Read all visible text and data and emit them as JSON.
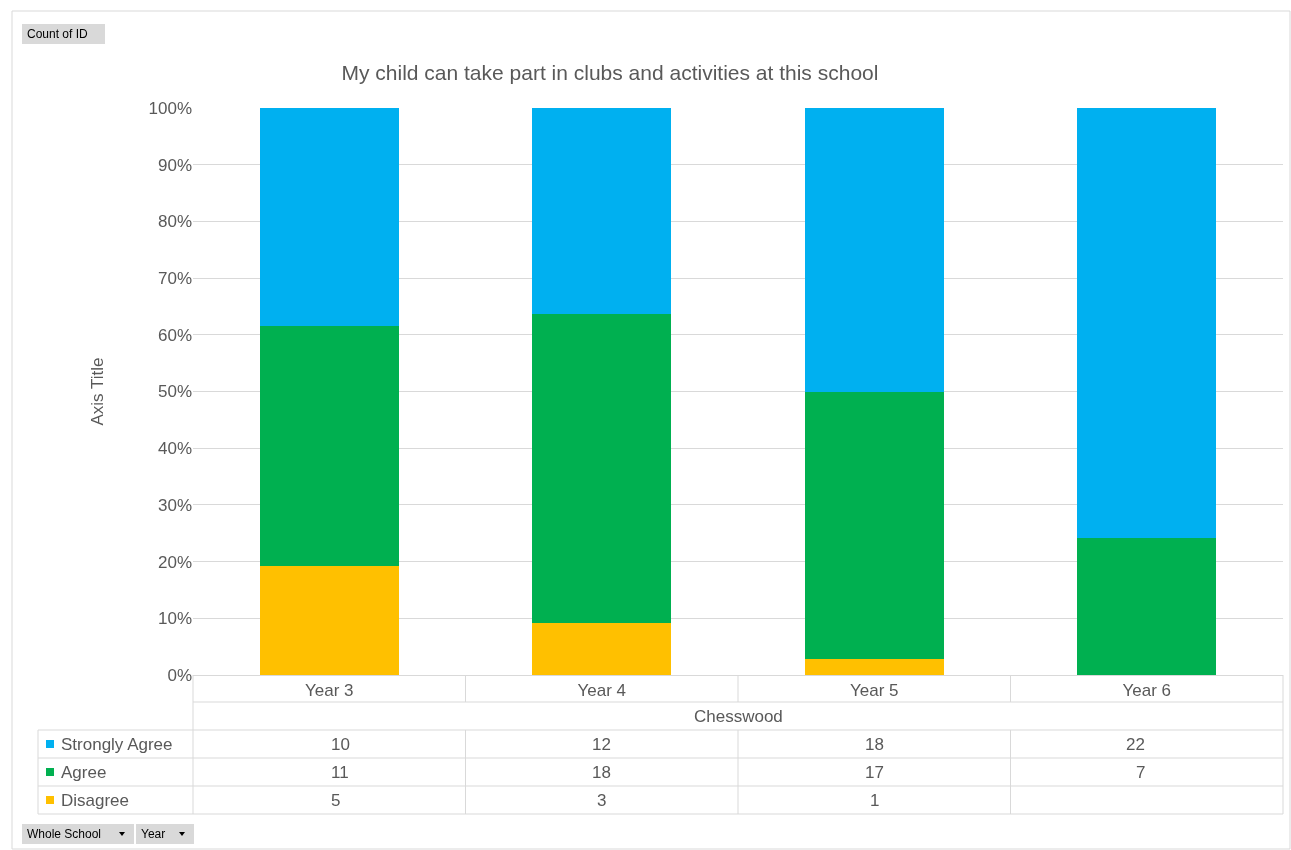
{
  "chart_data": {
    "type": "bar",
    "stacked": true,
    "title": "My child can take part in clubs and activities at this school",
    "ylabel": "Axis Title",
    "xlabel": "Chesswood",
    "categories": [
      "Year 3",
      "Year 4",
      "Year 5",
      "Year 6"
    ],
    "series": [
      {
        "name": "Disagree",
        "color": "#ffc000",
        "values": [
          19.2,
          9.1,
          2.8,
          null
        ]
      },
      {
        "name": "Agree",
        "color": "#00b050",
        "values": [
          42.3,
          54.5,
          47.2,
          24.1
        ]
      },
      {
        "name": "Strongly Agree",
        "color": "#00b0f0",
        "values": [
          38.5,
          36.4,
          50.0,
          75.9
        ]
      }
    ],
    "ylim": [
      0,
      100
    ],
    "yticks": [
      {
        "value": 0,
        "label": "0%"
      },
      {
        "value": 10,
        "label": "10%"
      },
      {
        "value": 20,
        "label": "20%"
      },
      {
        "value": 30,
        "label": "30%"
      },
      {
        "value": 40,
        "label": "40%"
      },
      {
        "value": 50,
        "label": "50%"
      },
      {
        "value": 60,
        "label": "60%"
      },
      {
        "value": 70,
        "label": "70%"
      },
      {
        "value": 80,
        "label": "80%"
      },
      {
        "value": 90,
        "label": "90%"
      },
      {
        "value": 100,
        "label": "100%"
      }
    ],
    "grid": "y",
    "legend": "bottom left",
    "annotations": [
      "Count of ID",
      "Whole School",
      "Year",
      "10",
      "12",
      "18",
      "22",
      "11",
      "18",
      "17",
      "7",
      "5",
      "3",
      "1"
    ]
  }
}
